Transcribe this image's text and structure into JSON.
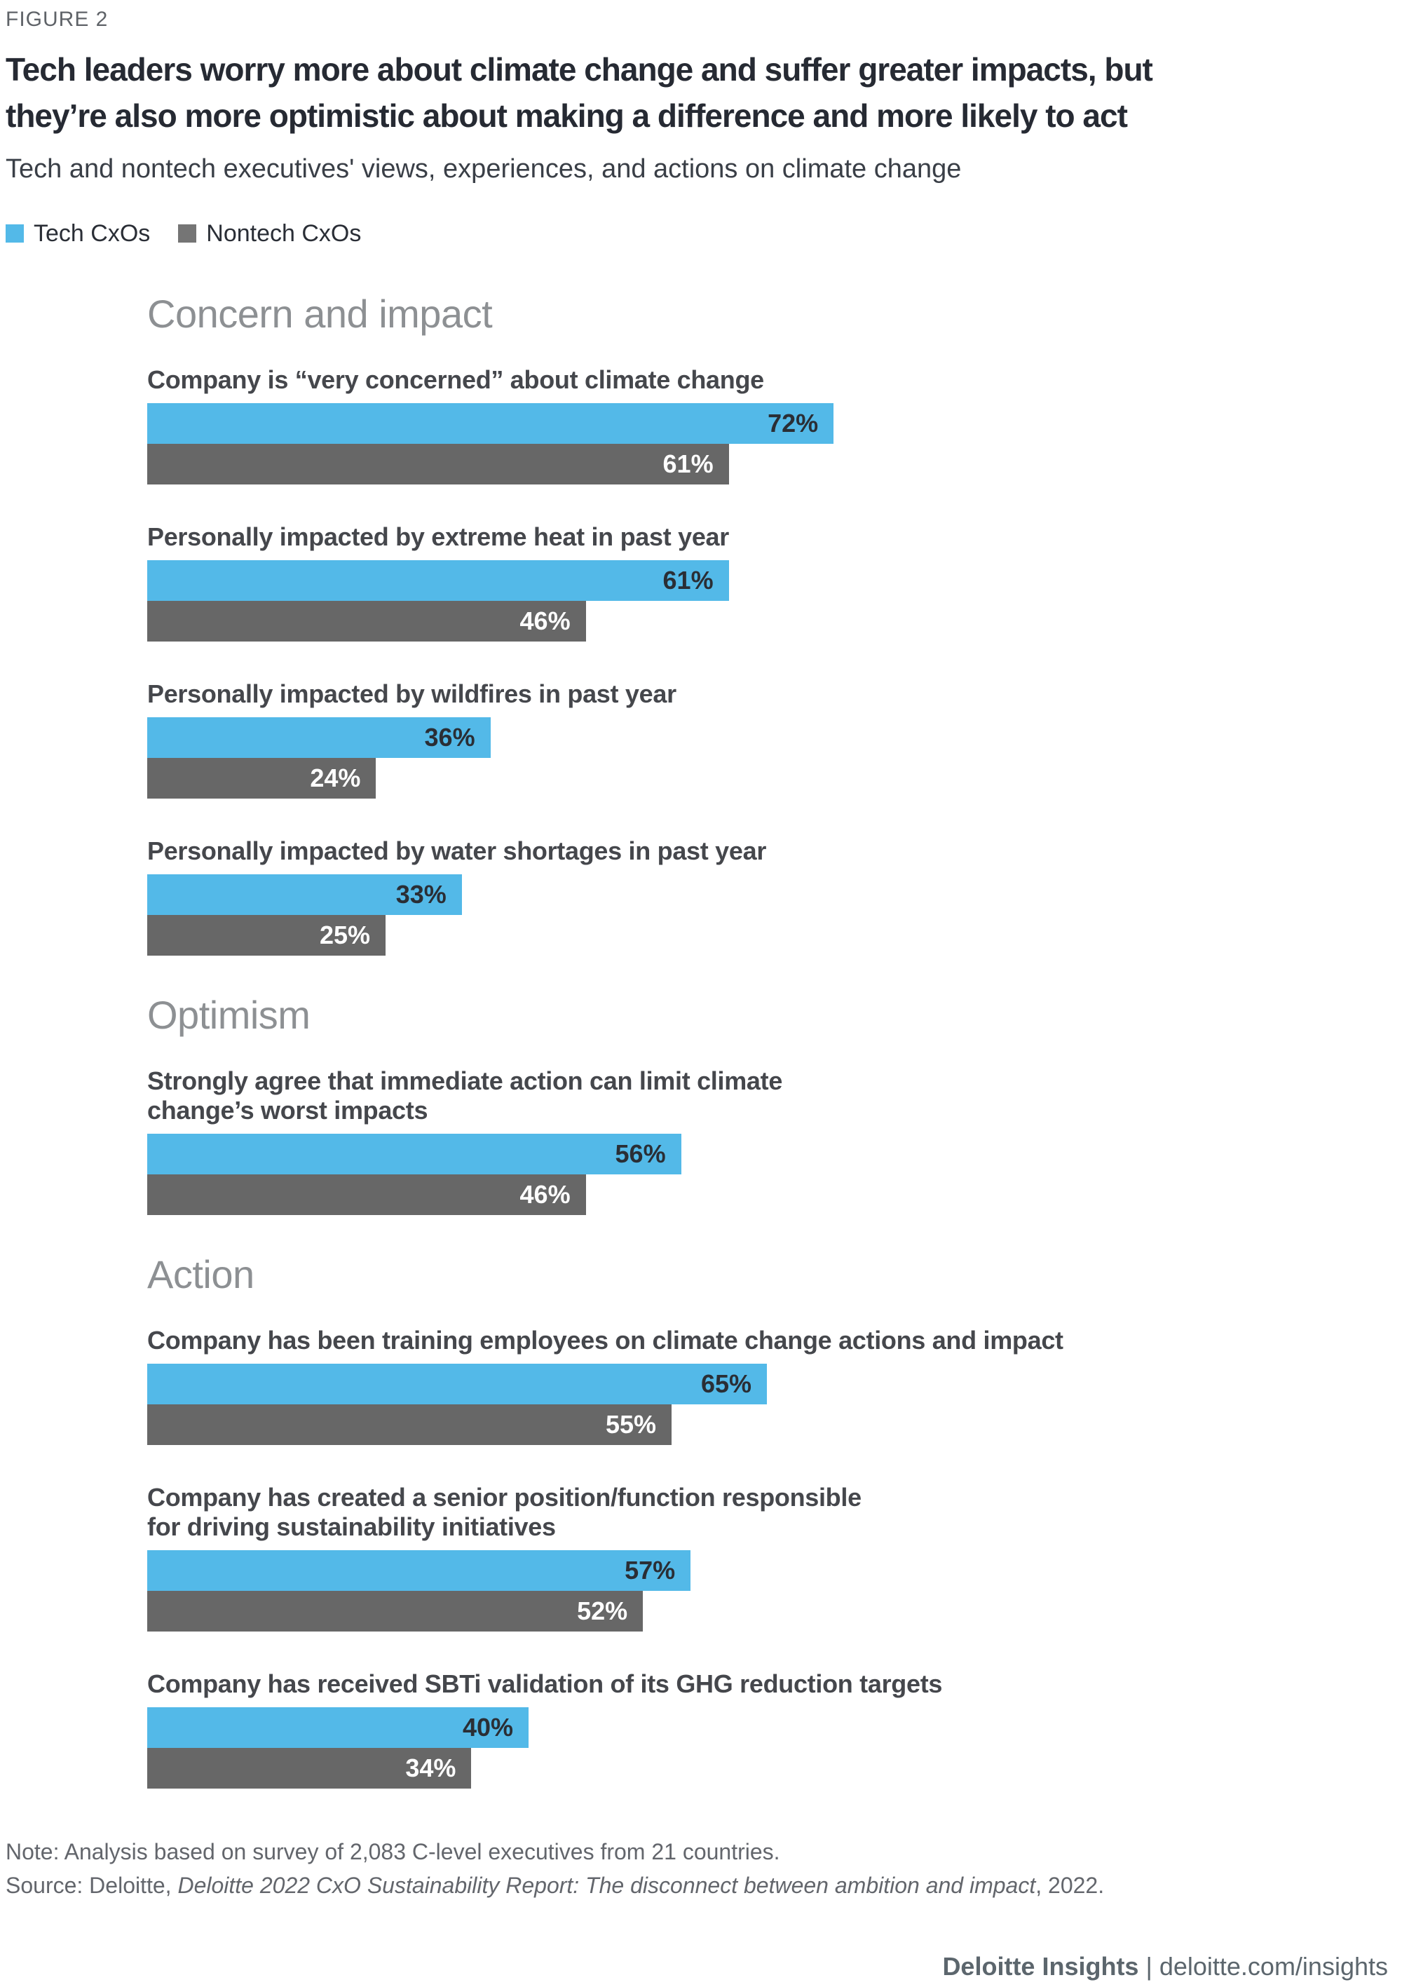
{
  "figure_label": "FIGURE 2",
  "title_lines": [
    "Tech leaders worry more about climate change and suffer greater impacts, but",
    "they’re also more optimistic about making a difference and more likely to act"
  ],
  "subtitle": "Tech and nontech executives' views, experiences, and actions on climate change",
  "legend": [
    {
      "label": "Tech CxOs",
      "color": "#53B9E8"
    },
    {
      "label": "Nontech CxOs",
      "color": "#757575"
    }
  ],
  "chart_data": {
    "type": "bar",
    "orientation": "horizontal",
    "unit": "%",
    "xlim": [
      0,
      100
    ],
    "grid": false,
    "value_labels": "inside-right",
    "series_names": [
      "Tech CxOs",
      "Nontech CxOs"
    ],
    "colors": {
      "tech": "#53B9E8",
      "nontech": "#676767"
    },
    "sections": [
      {
        "heading": "Concern and impact",
        "items": [
          {
            "label_lines": [
              "Company is “very concerned” about climate change"
            ],
            "tech": 72,
            "nontech": 61
          },
          {
            "label_lines": [
              "Personally impacted by extreme heat in past year"
            ],
            "tech": 61,
            "nontech": 46
          },
          {
            "label_lines": [
              "Personally impacted by wildfires in past year"
            ],
            "tech": 36,
            "nontech": 24
          },
          {
            "label_lines": [
              "Personally impacted by water shortages in past year"
            ],
            "tech": 33,
            "nontech": 25
          }
        ]
      },
      {
        "heading": "Optimism",
        "items": [
          {
            "label_lines": [
              "Strongly agree that immediate action can limit climate",
              "change’s worst impacts"
            ],
            "tech": 56,
            "nontech": 46
          }
        ]
      },
      {
        "heading": "Action",
        "items": [
          {
            "label_lines": [
              "Company has been training employees on climate change actions and impact"
            ],
            "tech": 65,
            "nontech": 55
          },
          {
            "label_lines": [
              "Company has created a senior position/function responsible",
              "for driving sustainability initiatives"
            ],
            "tech": 57,
            "nontech": 52
          },
          {
            "label_lines": [
              "Company has received SBTi validation of its GHG reduction targets"
            ],
            "tech": 40,
            "nontech": 34
          }
        ]
      }
    ]
  },
  "footer": {
    "note": "Note: Analysis based on survey of 2,083 C-level executives from 21 countries.",
    "source_prefix": "Source: Deloitte, ",
    "source_italic": "Deloitte 2022 CxO Sustainability Report: The disconnect between ambition and impact",
    "source_suffix": ", 2022.",
    "brand": "Deloitte Insights",
    "brand_separator": " | ",
    "brand_url": "deloitte.com/insights"
  }
}
